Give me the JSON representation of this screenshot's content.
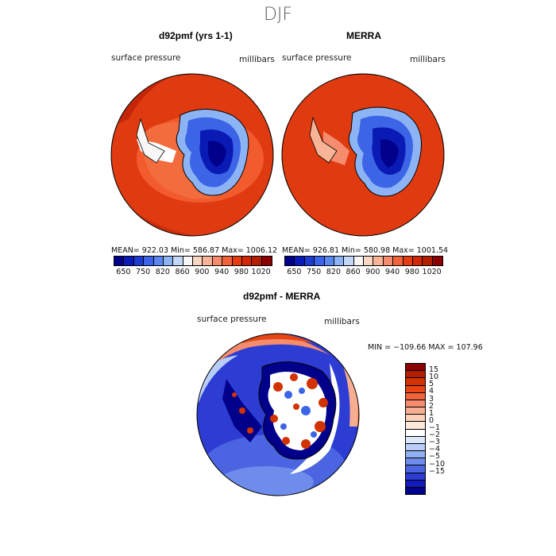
{
  "title": "DJF",
  "panels": [
    {
      "title": "d92pmf (yrs 1-1)",
      "variable_label": "surface pressure",
      "units_label": "millibars",
      "stats": "MEAN= 922.03   Min= 586.87   Max= 1006.12"
    },
    {
      "title": "MERRA",
      "variable_label": "surface pressure",
      "units_label": "millibars",
      "stats": "MEAN= 926.81   Min= 580.98   Max= 1001.54"
    }
  ],
  "abs_colorbar": {
    "colors": [
      "#00008b",
      "#0a1ab4",
      "#1f3cd2",
      "#3c64e6",
      "#5a88f0",
      "#8cb4f5",
      "#c3d9f7",
      "#f7f7f7",
      "#fad7c3",
      "#f7b496",
      "#f58c6e",
      "#f0643c",
      "#e63c14",
      "#d22808",
      "#b41e00",
      "#8b0000"
    ],
    "tick_labels": [
      "650",
      "750",
      "820",
      "860",
      "900",
      "940",
      "980",
      "1020"
    ]
  },
  "diff_panel": {
    "title": "d92pmf - MERRA",
    "variable_label": "surface pressure",
    "units_label": "millibars",
    "stats": "MIN = −109.66  MAX = 107.96"
  },
  "diff_colorbar": {
    "colors": [
      "#8b0000",
      "#b41e00",
      "#d23200",
      "#e64614",
      "#f0643c",
      "#f58c6e",
      "#f7ad8f",
      "#fad0b8",
      "#fde8dd",
      "#ffffff",
      "#dde8fd",
      "#b8cdf7",
      "#8faff0",
      "#6e8ceb",
      "#4b64e1",
      "#2d3cd2",
      "#1419be",
      "#00008b"
    ],
    "tick_labels": [
      "15",
      "10",
      "5",
      "4",
      "3",
      "2",
      "1",
      "0",
      "−1",
      "−2",
      "−3",
      "−4",
      "−5",
      "−10",
      "−15"
    ]
  }
}
